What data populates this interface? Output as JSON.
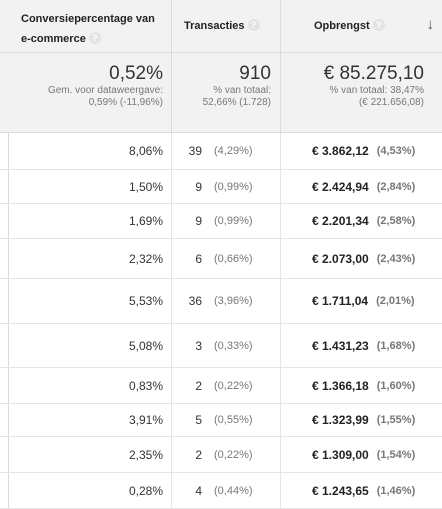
{
  "header": {
    "col_conversion": "Conversiepercentage van e-commerce",
    "col_transactions": "Transacties",
    "col_revenue": "Opbrengst",
    "help_glyph": "?",
    "sort_glyph": "↓"
  },
  "totals": {
    "conversion": {
      "value": "0,52%",
      "line1": "Gem. voor dataweergave:",
      "line2": "0,59% (-11,96%)"
    },
    "transactions": {
      "value": "910",
      "line1": "% van totaal:",
      "line2": "52,66% (1.728)"
    },
    "revenue": {
      "value": "€ 85.275,10",
      "line1": "% van totaal: 38,47%",
      "line2": "(€ 221.656,08)"
    }
  },
  "rows": [
    {
      "conversion": "8,06%",
      "transactions": "39",
      "transactions_pct": "(4,29%)",
      "revenue": "€ 3.862,12",
      "revenue_pct": "(4,53%)"
    },
    {
      "conversion": "1,50%",
      "transactions": "9",
      "transactions_pct": "(0,99%)",
      "revenue": "€ 2.424,94",
      "revenue_pct": "(2,84%)"
    },
    {
      "conversion": "1,69%",
      "transactions": "9",
      "transactions_pct": "(0,99%)",
      "revenue": "€ 2.201,34",
      "revenue_pct": "(2,58%)"
    },
    {
      "conversion": "2,32%",
      "transactions": "6",
      "transactions_pct": "(0,66%)",
      "revenue": "€ 2.073,00",
      "revenue_pct": "(2,43%)"
    },
    {
      "conversion": "5,53%",
      "transactions": "36",
      "transactions_pct": "(3,96%)",
      "revenue": "€ 1.711,04",
      "revenue_pct": "(2,01%)"
    },
    {
      "conversion": "5,08%",
      "transactions": "3",
      "transactions_pct": "(0,33%)",
      "revenue": "€ 1.431,23",
      "revenue_pct": "(1,68%)"
    },
    {
      "conversion": "0,83%",
      "transactions": "2",
      "transactions_pct": "(0,22%)",
      "revenue": "€ 1.366,18",
      "revenue_pct": "(1,60%)"
    },
    {
      "conversion": "3,91%",
      "transactions": "5",
      "transactions_pct": "(0,55%)",
      "revenue": "€ 1.323,99",
      "revenue_pct": "(1,55%)"
    },
    {
      "conversion": "2,35%",
      "transactions": "2",
      "transactions_pct": "(0,22%)",
      "revenue": "€ 1.309,00",
      "revenue_pct": "(1,54%)"
    },
    {
      "conversion": "0,28%",
      "transactions": "4",
      "transactions_pct": "(0,44%)",
      "revenue": "€ 1.243,65",
      "revenue_pct": "(1,46%)"
    }
  ]
}
